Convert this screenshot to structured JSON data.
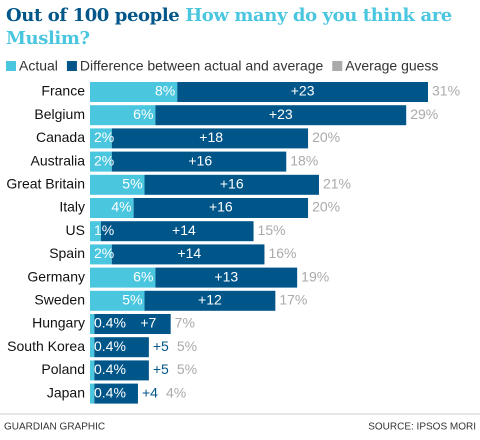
{
  "chart_data": {
    "type": "stacked-bar-horizontal",
    "title": "Out of 100 people",
    "subtitle": "How many do you think are Muslim?",
    "categories": [
      "France",
      "Belgium",
      "Canada",
      "Australia",
      "Great Britain",
      "Italy",
      "US",
      "Spain",
      "Germany",
      "Sweden",
      "Hungary",
      "South Korea",
      "Poland",
      "Japan"
    ],
    "series": [
      {
        "name": "Actual",
        "color": "#4bc6df",
        "values": [
          8,
          6,
          2,
          2,
          5,
          4,
          1,
          2,
          6,
          5,
          0.4,
          0.4,
          0.4,
          0.4
        ],
        "value_labels": [
          "8%",
          "6%",
          "2%",
          "2%",
          "5%",
          "4%",
          "1%",
          "2%",
          "6%",
          "5%",
          "0.4%",
          "0.4%",
          "0.4%",
          "0.4%"
        ]
      },
      {
        "name": "Difference between actual and average",
        "color": "#005689",
        "values": [
          23,
          23,
          18,
          16,
          16,
          16,
          14,
          14,
          13,
          12,
          7,
          5,
          5,
          4
        ],
        "value_labels": [
          "+23",
          "+23",
          "+18",
          "+16",
          "+16",
          "+16",
          "+14",
          "+14",
          "+13",
          "+12",
          "+7",
          "+5",
          "+5",
          "+4"
        ]
      },
      {
        "name": "Average guess",
        "color": "#aaaaaa",
        "values": [
          31,
          29,
          20,
          18,
          21,
          20,
          15,
          16,
          19,
          17,
          7,
          5,
          5,
          4
        ],
        "value_labels": [
          "31%",
          "29%",
          "20%",
          "18%",
          "21%",
          "20%",
          "15%",
          "16%",
          "19%",
          "17%",
          "7%",
          "5%",
          "5%",
          "4%"
        ]
      }
    ],
    "footer_left": "GUARDIAN GRAPHIC",
    "footer_right": "SOURCE: IPSOS MORI"
  }
}
